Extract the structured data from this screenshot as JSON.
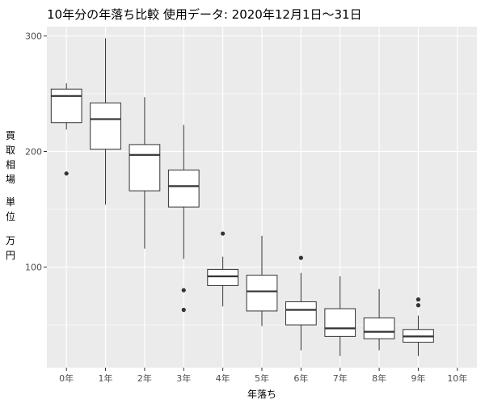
{
  "chart_data": {
    "type": "boxplot",
    "title": "10年分の年落ち比較 使用データ: 2020年12月1日～31日",
    "xlabel": "年落ち",
    "ylabel_chars": [
      "買",
      "取",
      "相",
      "場",
      "単",
      "位",
      "万",
      "円"
    ],
    "categories": [
      "0年",
      "1年",
      "2年",
      "3年",
      "4年",
      "5年",
      "6年",
      "7年",
      "8年",
      "9年",
      "10年"
    ],
    "y_ticks": [
      100,
      200,
      300
    ],
    "y_tick_labels": [
      "100",
      "200",
      "300"
    ],
    "ylim": [
      13,
      308
    ],
    "grid": true,
    "boxes": [
      {
        "category": "0年",
        "whisker_low": 219,
        "q1": 225,
        "median": 248,
        "q3": 254,
        "whisker_high": 259,
        "outliers": [
          181
        ]
      },
      {
        "category": "1年",
        "whisker_low": 154,
        "q1": 202,
        "median": 228,
        "q3": 242,
        "whisker_high": 298,
        "outliers": []
      },
      {
        "category": "2年",
        "whisker_low": 116,
        "q1": 166,
        "median": 197,
        "q3": 206,
        "whisker_high": 247,
        "outliers": []
      },
      {
        "category": "3年",
        "whisker_low": 107,
        "q1": 152,
        "median": 170,
        "q3": 184,
        "whisker_high": 223,
        "outliers": [
          80,
          63
        ]
      },
      {
        "category": "4年",
        "whisker_low": 66,
        "q1": 84,
        "median": 92,
        "q3": 98,
        "whisker_high": 109,
        "outliers": [
          129
        ]
      },
      {
        "category": "5年",
        "whisker_low": 49,
        "q1": 62,
        "median": 79,
        "q3": 93,
        "whisker_high": 127,
        "outliers": []
      },
      {
        "category": "6年",
        "whisker_low": 28,
        "q1": 50,
        "median": 63,
        "q3": 70,
        "whisker_high": 95,
        "outliers": [
          108
        ]
      },
      {
        "category": "7年",
        "whisker_low": 23,
        "q1": 40,
        "median": 47,
        "q3": 64,
        "whisker_high": 92,
        "outliers": []
      },
      {
        "category": "8年",
        "whisker_low": 28,
        "q1": 38,
        "median": 44,
        "q3": 56,
        "whisker_high": 81,
        "outliers": []
      },
      {
        "category": "9年",
        "whisker_low": 23,
        "q1": 35,
        "median": 40,
        "q3": 46,
        "whisker_high": 58,
        "outliers": [
          72,
          67
        ]
      },
      {
        "category": "10年",
        "whisker_low": null,
        "q1": null,
        "median": null,
        "q3": null,
        "whisker_high": null,
        "outliers": []
      }
    ],
    "colors": {
      "panel_background": "#ebebeb",
      "grid_major": "#ffffff",
      "box_fill": "#ffffff",
      "box_stroke": "#333333",
      "outlier": "#333333"
    }
  }
}
